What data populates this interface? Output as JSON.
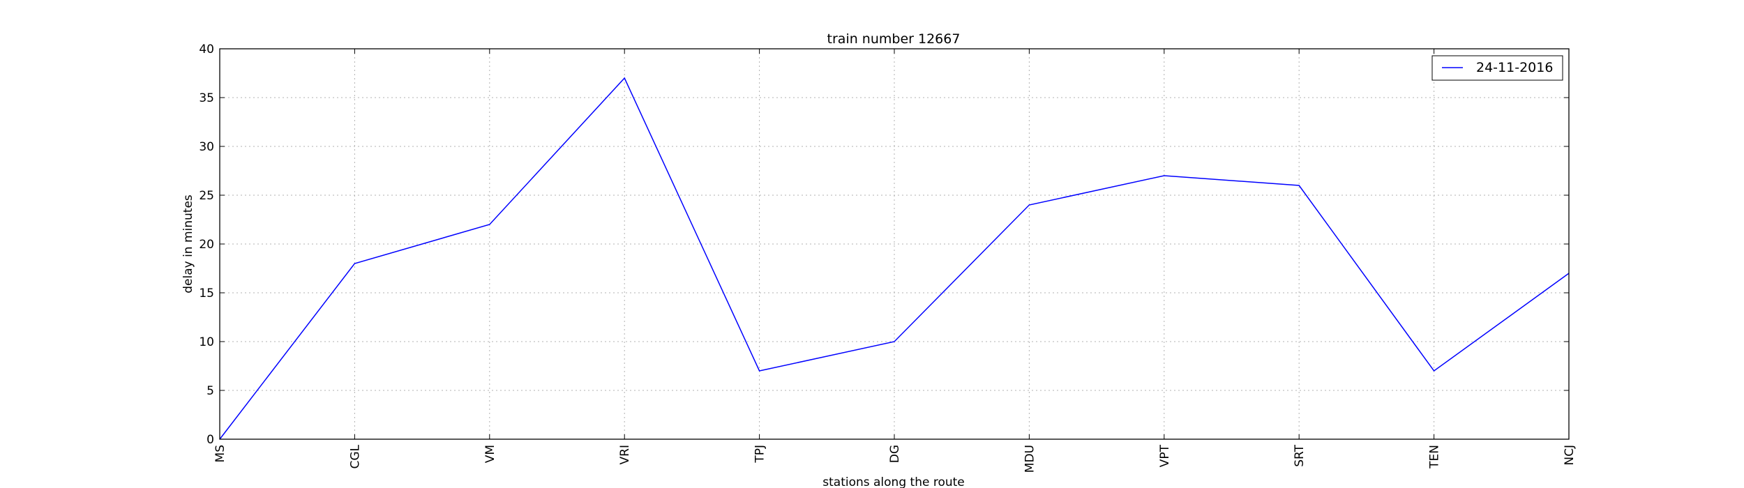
{
  "chart_data": {
    "type": "line",
    "title": "train number 12667",
    "xlabel": "stations along the route",
    "ylabel": "delay in minutes",
    "categories": [
      "MS",
      "CGL",
      "VM",
      "VRI",
      "TPJ",
      "DG",
      "MDU",
      "VPT",
      "SRT",
      "TEN",
      "NCJ"
    ],
    "series": [
      {
        "name": "24-11-2016",
        "color": "#0000ff",
        "values": [
          0,
          18,
          22,
          37,
          7,
          10,
          24,
          27,
          26,
          7,
          17
        ]
      }
    ],
    "ylim": [
      0,
      40
    ],
    "yticks": [
      "0",
      "5",
      "10",
      "15",
      "20",
      "25",
      "30",
      "35",
      "40"
    ],
    "grid": true,
    "legend_position": "top-right"
  }
}
